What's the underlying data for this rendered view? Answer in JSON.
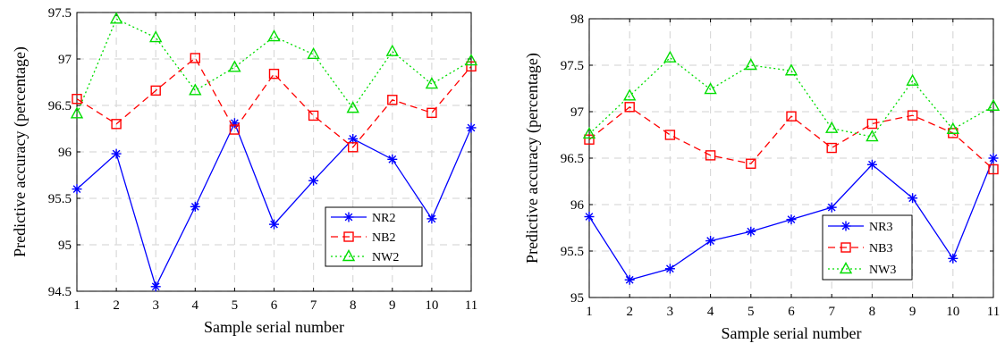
{
  "chart_data": [
    {
      "type": "line",
      "title": "",
      "xlabel": "Sample serial number",
      "ylabel": "Predictive accuracy (percentage)",
      "xlim": [
        1,
        11
      ],
      "ylim": [
        94.5,
        97.5
      ],
      "xticks": [
        "1",
        "2",
        "3",
        "4",
        "5",
        "6",
        "7",
        "8",
        "9",
        "10",
        "11"
      ],
      "yticks": [
        "94.5",
        "95",
        "95.5",
        "96",
        "96.5",
        "97",
        "97.5"
      ],
      "grid": true,
      "legend_position": "lower-right",
      "x": [
        1,
        2,
        3,
        4,
        5,
        6,
        7,
        8,
        9,
        10,
        11
      ],
      "series": [
        {
          "name": "NR2",
          "color": "#0000ff",
          "marker": "asterisk",
          "dash": "solid",
          "values": [
            95.6,
            95.98,
            94.55,
            95.41,
            96.31,
            95.22,
            95.69,
            96.14,
            95.92,
            95.28,
            96.26
          ]
        },
        {
          "name": "NB2",
          "color": "#ff0000",
          "marker": "square",
          "dash": "dashed",
          "values": [
            96.57,
            96.3,
            96.66,
            97.01,
            96.24,
            96.84,
            96.39,
            96.05,
            96.56,
            96.42,
            96.92
          ]
        },
        {
          "name": "NW2",
          "color": "#00dd00",
          "marker": "triangle",
          "dash": "dotted",
          "values": [
            96.41,
            97.43,
            97.23,
            96.66,
            96.91,
            97.24,
            97.05,
            96.47,
            97.08,
            96.73,
            96.98
          ]
        }
      ]
    },
    {
      "type": "line",
      "title": "",
      "xlabel": "Sample serial number",
      "ylabel": "Predictive accuracy (percentage)",
      "xlim": [
        1,
        11
      ],
      "ylim": [
        95,
        98
      ],
      "xticks": [
        "1",
        "2",
        "3",
        "4",
        "5",
        "6",
        "7",
        "8",
        "9",
        "10",
        "11"
      ],
      "yticks": [
        "95",
        "95.5",
        "96",
        "96.5",
        "97",
        "97.5",
        "98"
      ],
      "grid": true,
      "legend_position": "lower-right",
      "x": [
        1,
        2,
        3,
        4,
        5,
        6,
        7,
        8,
        9,
        10,
        11
      ],
      "series": [
        {
          "name": "NR3",
          "color": "#0000ff",
          "marker": "asterisk",
          "dash": "solid",
          "values": [
            95.87,
            95.19,
            95.31,
            95.61,
            95.71,
            95.84,
            95.97,
            96.43,
            96.07,
            95.42,
            96.5
          ]
        },
        {
          "name": "NB3",
          "color": "#ff0000",
          "marker": "square",
          "dash": "dashed",
          "values": [
            96.7,
            97.05,
            96.75,
            96.53,
            96.44,
            96.95,
            96.61,
            96.87,
            96.96,
            96.77,
            96.38
          ]
        },
        {
          "name": "NW3",
          "color": "#00dd00",
          "marker": "triangle",
          "dash": "dotted",
          "values": [
            96.76,
            97.17,
            97.58,
            97.24,
            97.5,
            97.44,
            96.82,
            96.73,
            97.33,
            96.81,
            97.06
          ]
        }
      ]
    }
  ]
}
